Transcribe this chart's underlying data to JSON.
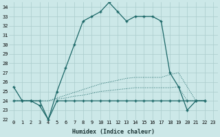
{
  "xlabel": "Humidex (Indice chaleur)",
  "background_color": "#cce8e8",
  "grid_color": "#aacccc",
  "line_color": "#1a6666",
  "xlim": [
    -0.5,
    23.5
  ],
  "ylim": [
    22,
    34.5
  ],
  "yticks": [
    22,
    23,
    24,
    25,
    26,
    27,
    28,
    29,
    30,
    31,
    32,
    33,
    34
  ],
  "xticks": [
    0,
    1,
    2,
    3,
    4,
    5,
    6,
    7,
    8,
    9,
    10,
    11,
    12,
    13,
    14,
    15,
    16,
    17,
    18,
    19,
    20,
    21,
    22,
    23
  ],
  "series1_x": [
    0,
    1,
    2,
    3,
    4,
    5,
    6,
    7,
    8,
    9,
    10,
    11,
    12,
    13,
    14,
    15,
    16,
    17,
    18,
    19,
    20,
    21,
    22
  ],
  "series1_y": [
    25.5,
    24.0,
    24.0,
    24.0,
    22.0,
    25.0,
    27.5,
    30.0,
    32.5,
    33.0,
    33.5,
    34.5,
    33.5,
    32.5,
    33.0,
    33.0,
    33.0,
    32.5,
    27.0,
    25.5,
    23.0,
    24.0,
    24.0
  ],
  "series2_x": [
    0,
    1,
    2,
    3,
    4,
    5,
    6,
    7,
    8,
    9,
    10,
    11,
    12,
    13,
    14,
    15,
    16,
    17,
    18,
    19,
    20,
    21,
    22
  ],
  "series2_y": [
    24.0,
    24.0,
    24.0,
    23.5,
    22.0,
    24.0,
    24.0,
    24.0,
    24.0,
    24.0,
    24.0,
    24.0,
    24.0,
    24.0,
    24.0,
    24.0,
    24.0,
    24.0,
    24.0,
    24.0,
    24.0,
    24.0,
    24.0
  ],
  "series3_x": [
    0,
    1,
    2,
    3,
    4,
    5,
    6,
    7,
    8,
    9,
    10,
    11,
    12,
    13,
    14,
    15,
    16,
    17,
    18,
    19,
    20,
    21,
    22
  ],
  "series3_y": [
    24.0,
    24.0,
    24.0,
    24.0,
    24.0,
    24.2,
    24.3,
    24.5,
    24.6,
    24.8,
    25.0,
    25.1,
    25.2,
    25.3,
    25.4,
    25.4,
    25.4,
    25.4,
    25.4,
    25.5,
    24.0,
    24.0,
    24.0
  ],
  "series4_x": [
    0,
    1,
    2,
    3,
    4,
    5,
    6,
    7,
    8,
    9,
    10,
    11,
    12,
    13,
    14,
    15,
    16,
    17,
    18,
    19,
    20,
    21,
    22
  ],
  "series4_y": [
    24.0,
    24.0,
    24.0,
    24.0,
    24.0,
    24.3,
    24.6,
    24.9,
    25.2,
    25.5,
    25.8,
    26.0,
    26.2,
    26.4,
    26.5,
    26.5,
    26.5,
    26.5,
    26.8,
    27.0,
    25.5,
    24.0,
    24.0
  ]
}
